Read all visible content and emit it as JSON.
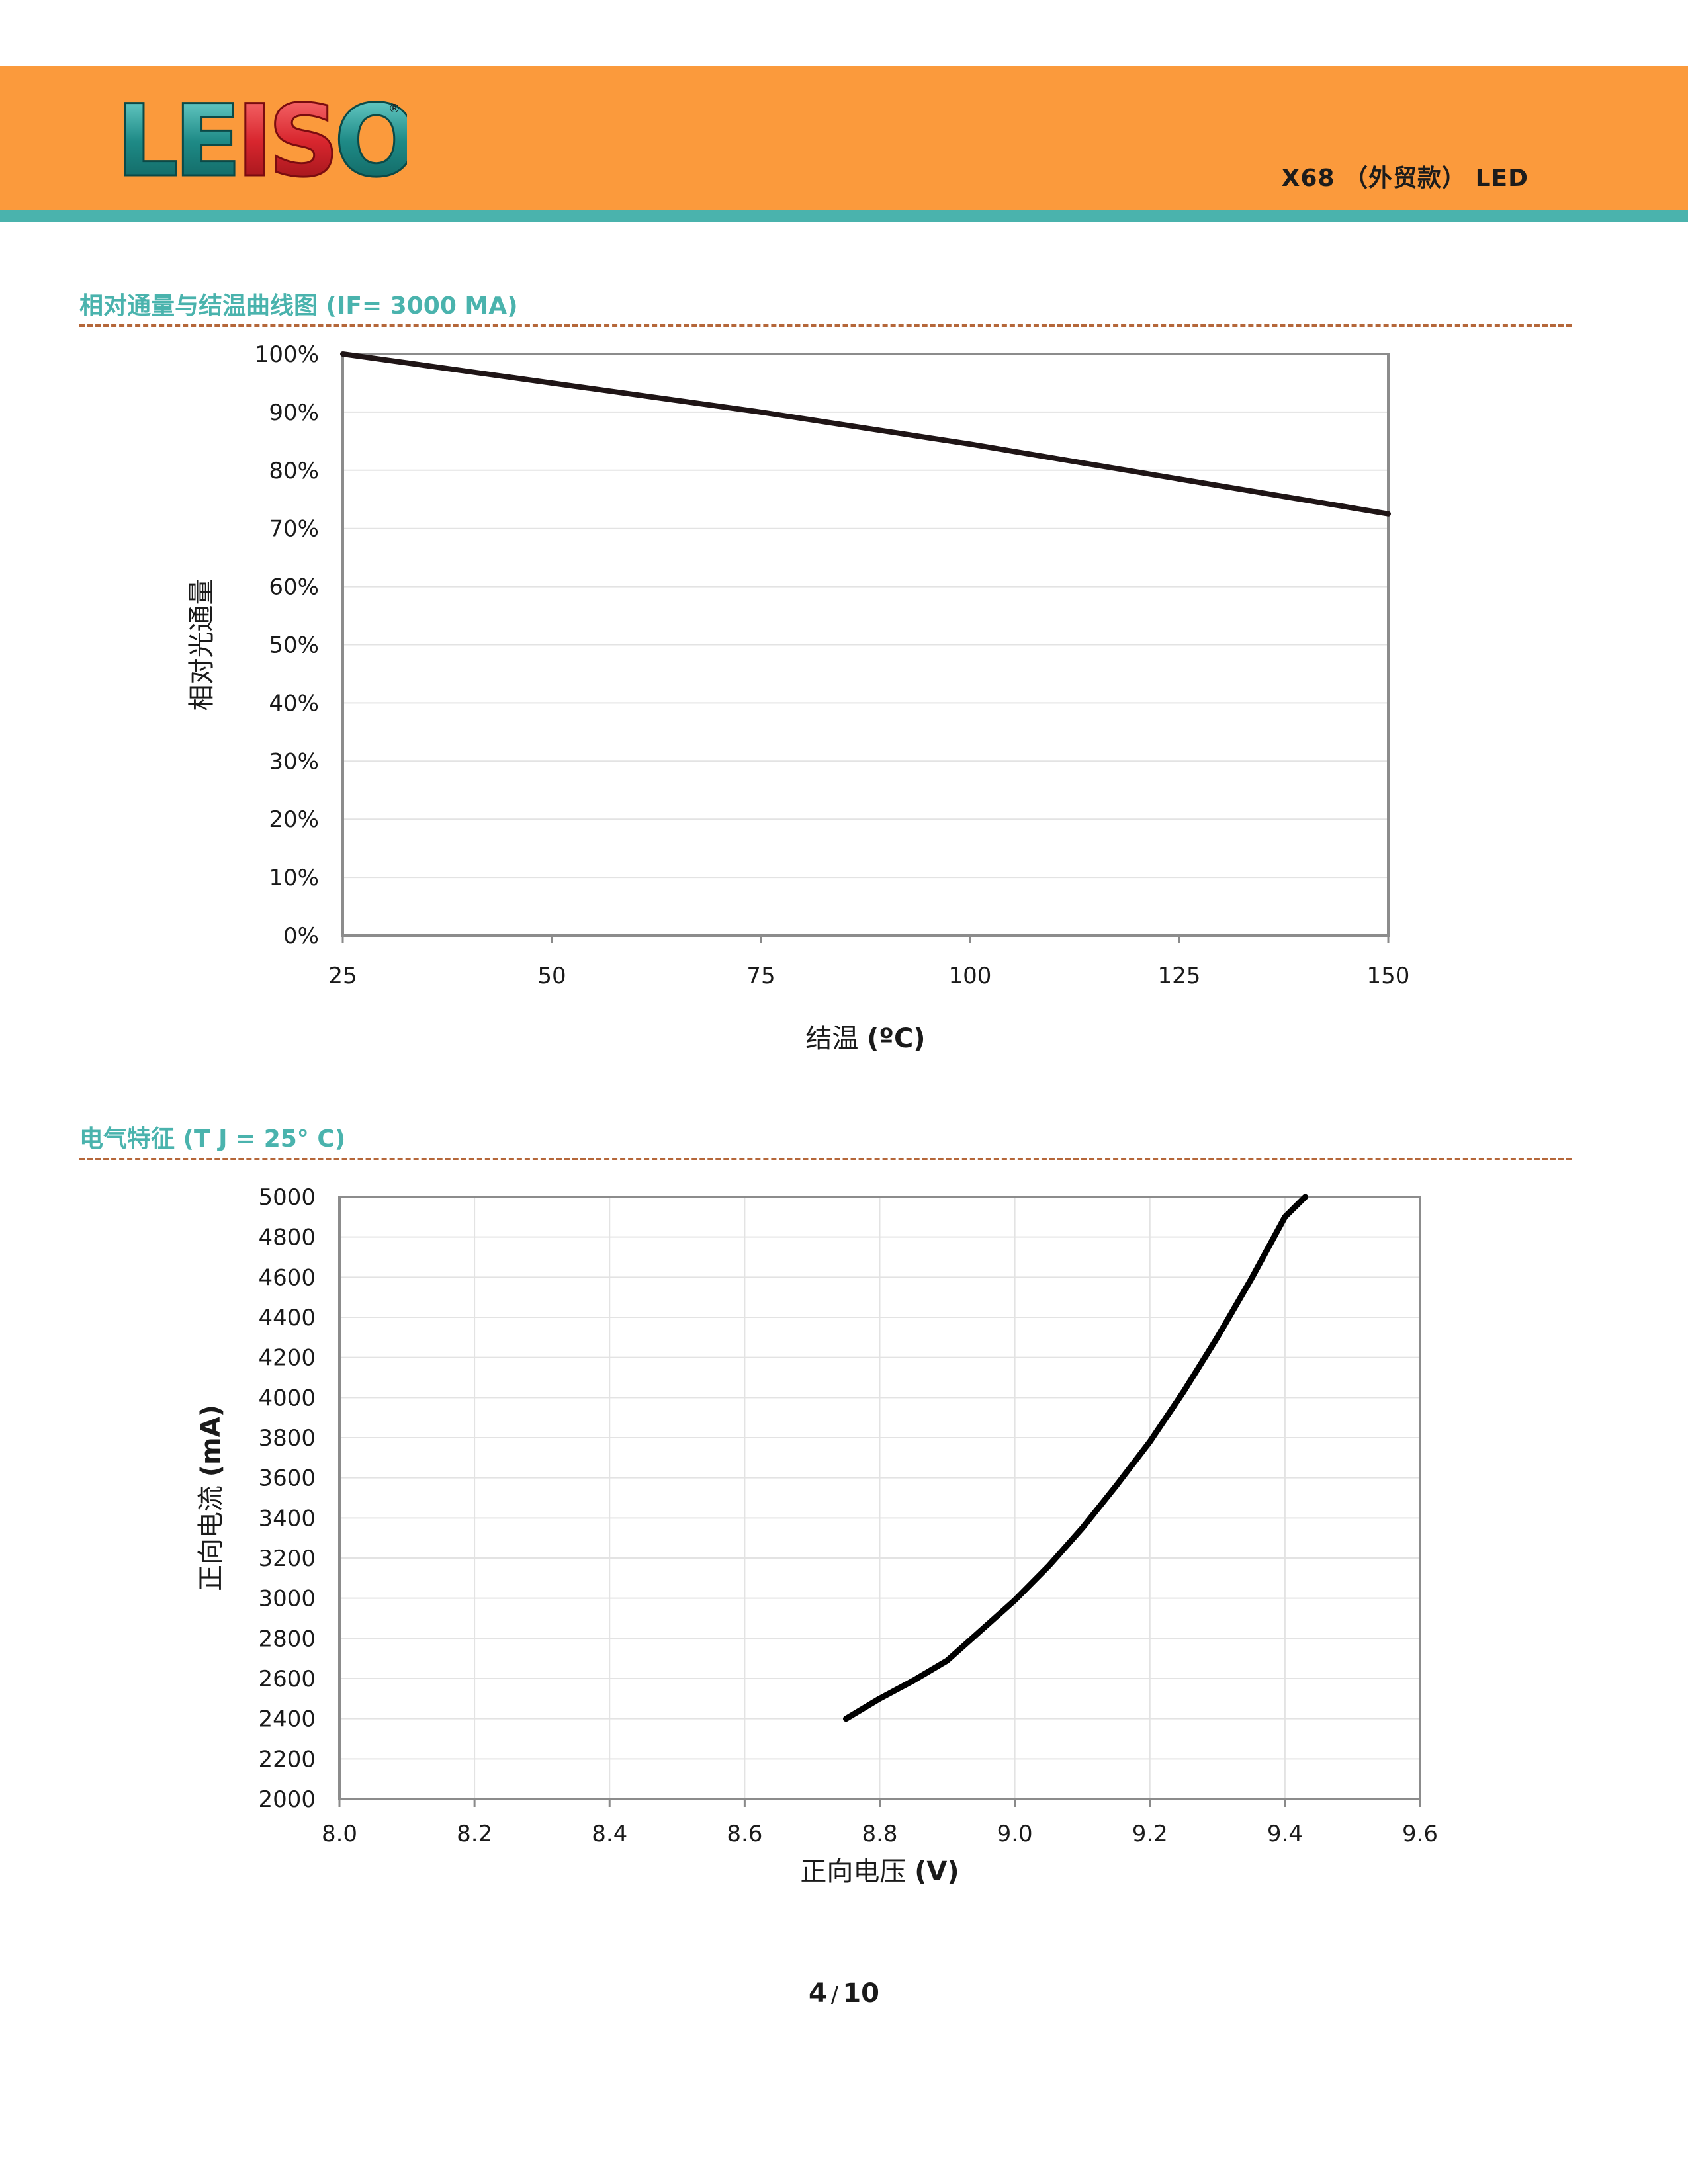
{
  "header": {
    "logo_text": "LEISO",
    "logo_mark": "®",
    "doc_title": "X68 （外贸款） LED",
    "colors": {
      "band": "#fb9a3c",
      "stripe": "#4ab3ad",
      "logo_teal": "#1e8a86",
      "logo_red": "#d8262e"
    }
  },
  "sections": [
    {
      "title": "相对通量与结温曲线图 (IF= 3000 MA)"
    },
    {
      "title": "电气特征 (T J = 25° C)"
    }
  ],
  "chart_data": [
    {
      "type": "line",
      "xlabel": "结温",
      "xlabel_unit": "(ºC)",
      "ylabel": "相对光通量",
      "xlim": [
        25,
        150
      ],
      "ylim": [
        0,
        100
      ],
      "x_ticks": [
        25,
        50,
        75,
        100,
        125,
        150
      ],
      "y_ticks": [
        "0%",
        "10%",
        "20%",
        "30%",
        "40%",
        "50%",
        "60%",
        "70%",
        "80%",
        "90%",
        "100%"
      ],
      "grid": true,
      "legend": "none",
      "series": [
        {
          "x": [
            25,
            50,
            75,
            100,
            125,
            150
          ],
          "y": [
            100,
            95,
            90,
            84.5,
            78.5,
            72.5
          ]
        }
      ]
    },
    {
      "type": "line",
      "xlabel": "正向电压",
      "xlabel_unit": "(V)",
      "ylabel": "正向电流",
      "ylabel_unit": "(mA)",
      "xlim": [
        8.0,
        9.6
      ],
      "ylim": [
        2000,
        5000
      ],
      "x_ticks": [
        "8.0",
        "8.2",
        "8.4",
        "8.6",
        "8.8",
        "9.0",
        "9.2",
        "9.4",
        "9.6"
      ],
      "y_ticks": [
        "2000",
        "2200",
        "2400",
        "2600",
        "2800",
        "3000",
        "3200",
        "3400",
        "3600",
        "3800",
        "4000",
        "4200",
        "4400",
        "4600",
        "4800",
        "5000"
      ],
      "grid": true,
      "legend": "none",
      "series": [
        {
          "x": [
            8.75,
            8.8,
            8.85,
            8.9,
            8.95,
            9.0,
            9.05,
            9.1,
            9.15,
            9.2,
            9.25,
            9.3,
            9.35,
            9.4,
            9.43
          ],
          "y": [
            2400,
            2500,
            2590,
            2690,
            2840,
            2990,
            3160,
            3350,
            3560,
            3780,
            4030,
            4300,
            4590,
            4900,
            5000
          ]
        }
      ]
    }
  ],
  "footer": {
    "page_current": "4",
    "page_sep": "/",
    "page_total": "10"
  }
}
